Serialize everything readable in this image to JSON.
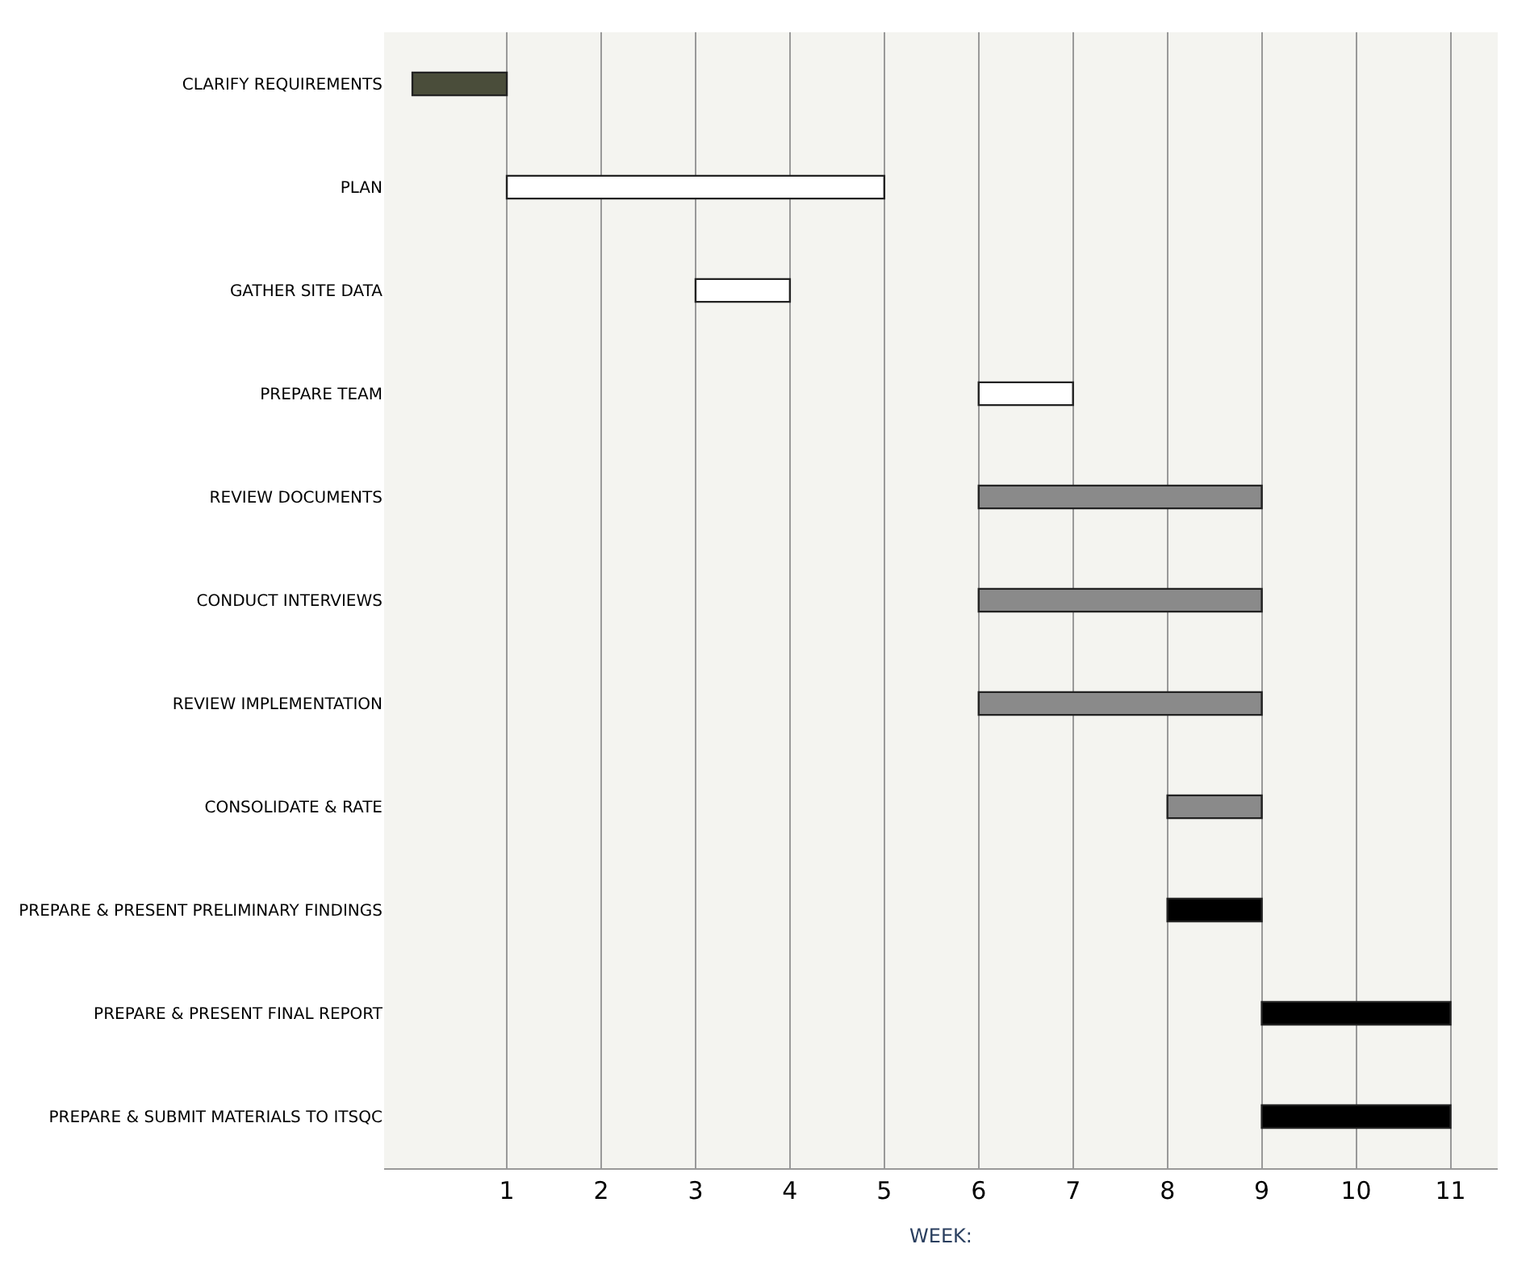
{
  "chart_data": {
    "type": "bar",
    "orientation": "horizontal",
    "xlabel": "WEEK:",
    "categories": [
      "CLARIFY REQUIREMENTS",
      "PLAN",
      "GATHER SITE DATA",
      "PREPARE TEAM",
      "REVIEW DOCUMENTS",
      "CONDUCT INTERVIEWS",
      "REVIEW IMPLEMENTATION",
      "CONSOLIDATE & RATE",
      "PREPARE & PRESENT PRELIMINARY FINDINGS",
      "PREPARE & PRESENT FINAL REPORT",
      "PREPARE & SUBMIT MATERIALS TO ITSQC"
    ],
    "base": [
      0,
      1,
      3,
      6,
      6,
      6,
      6,
      8,
      8,
      9,
      9
    ],
    "values": [
      1,
      4,
      1,
      1,
      3,
      3,
      3,
      1,
      1,
      2,
      2
    ],
    "colors": [
      "#4a4d3a",
      "#ffffff",
      "#ffffff",
      "#ffffff",
      "#8a8a8a",
      "#8a8a8a",
      "#8a8a8a",
      "#8a8a8a",
      "#000000",
      "#000000",
      "#000000"
    ],
    "xlim": [
      -0.3,
      11.5
    ],
    "xticks": [
      1,
      2,
      3,
      4,
      5,
      6,
      7,
      8,
      9,
      10,
      11
    ],
    "grid": "x"
  }
}
